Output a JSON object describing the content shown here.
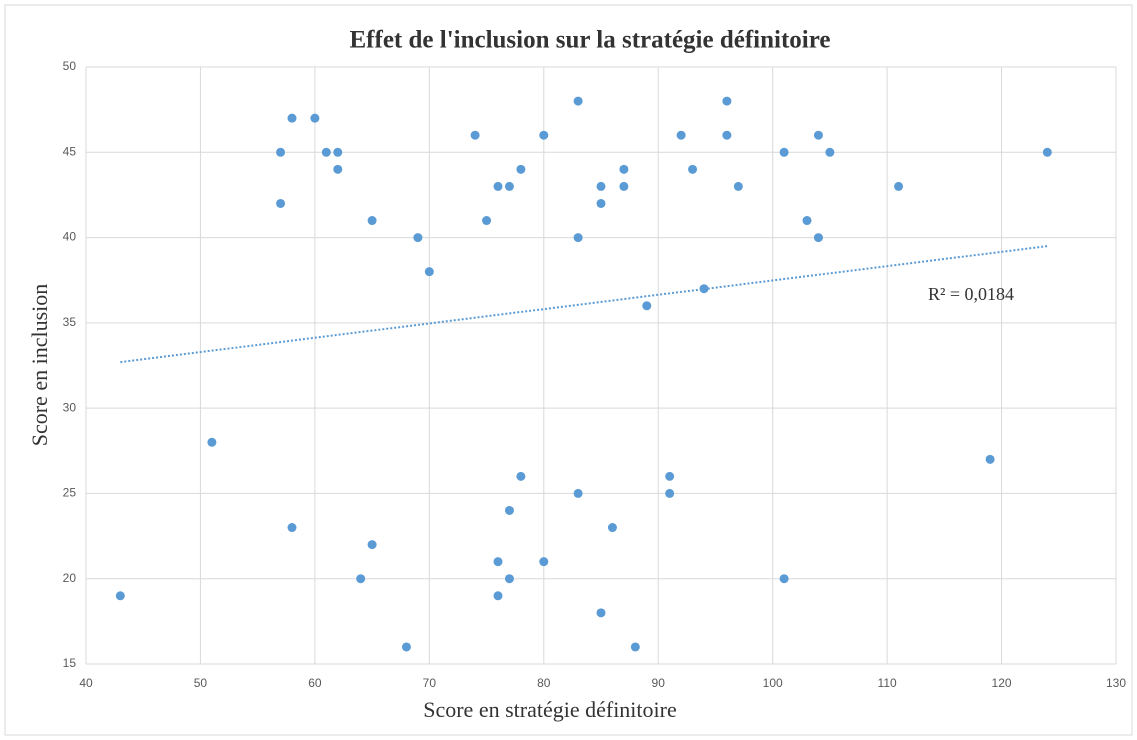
{
  "chart_data": {
    "type": "scatter",
    "title": "Effet de l'inclusion sur la stratégie définitoire",
    "x_label": "Score en stratégie définitoire",
    "y_label": "Score en inclusion",
    "color": "#5b9bd5",
    "x": [
      43,
      51,
      57,
      57,
      58,
      58,
      60,
      61,
      62,
      62,
      64,
      65,
      65,
      68,
      69,
      70,
      74,
      75,
      76,
      76,
      76,
      77,
      77,
      77,
      78,
      78,
      80,
      80,
      83,
      83,
      83,
      85,
      85,
      85,
      86,
      87,
      87,
      88,
      89,
      91,
      91,
      92,
      93,
      94,
      96,
      96,
      97,
      101,
      101,
      103,
      104,
      104,
      105,
      111,
      119,
      124
    ],
    "values": [
      19,
      28,
      45,
      42,
      47,
      23,
      47,
      45,
      45,
      44,
      20,
      41,
      22,
      16,
      40,
      38,
      46,
      41,
      43,
      21,
      19,
      43,
      24,
      20,
      44,
      26,
      46,
      21,
      48,
      40,
      25,
      43,
      42,
      18,
      23,
      44,
      43,
      16,
      36,
      26,
      25,
      46,
      44,
      37,
      48,
      46,
      43,
      45,
      20,
      41,
      46,
      40,
      45,
      43,
      27,
      45
    ],
    "trendline": {
      "x": [
        43,
        124
      ],
      "y": [
        32.7,
        39.5
      ],
      "label": "R² = 0,0184"
    },
    "xlim": [
      40,
      130
    ],
    "xticks": [
      40,
      50,
      60,
      70,
      80,
      90,
      100,
      110,
      120,
      130
    ],
    "ylim": [
      15,
      50
    ],
    "yticks": [
      15,
      20,
      25,
      30,
      35,
      40,
      45,
      50
    ],
    "grid": true
  }
}
